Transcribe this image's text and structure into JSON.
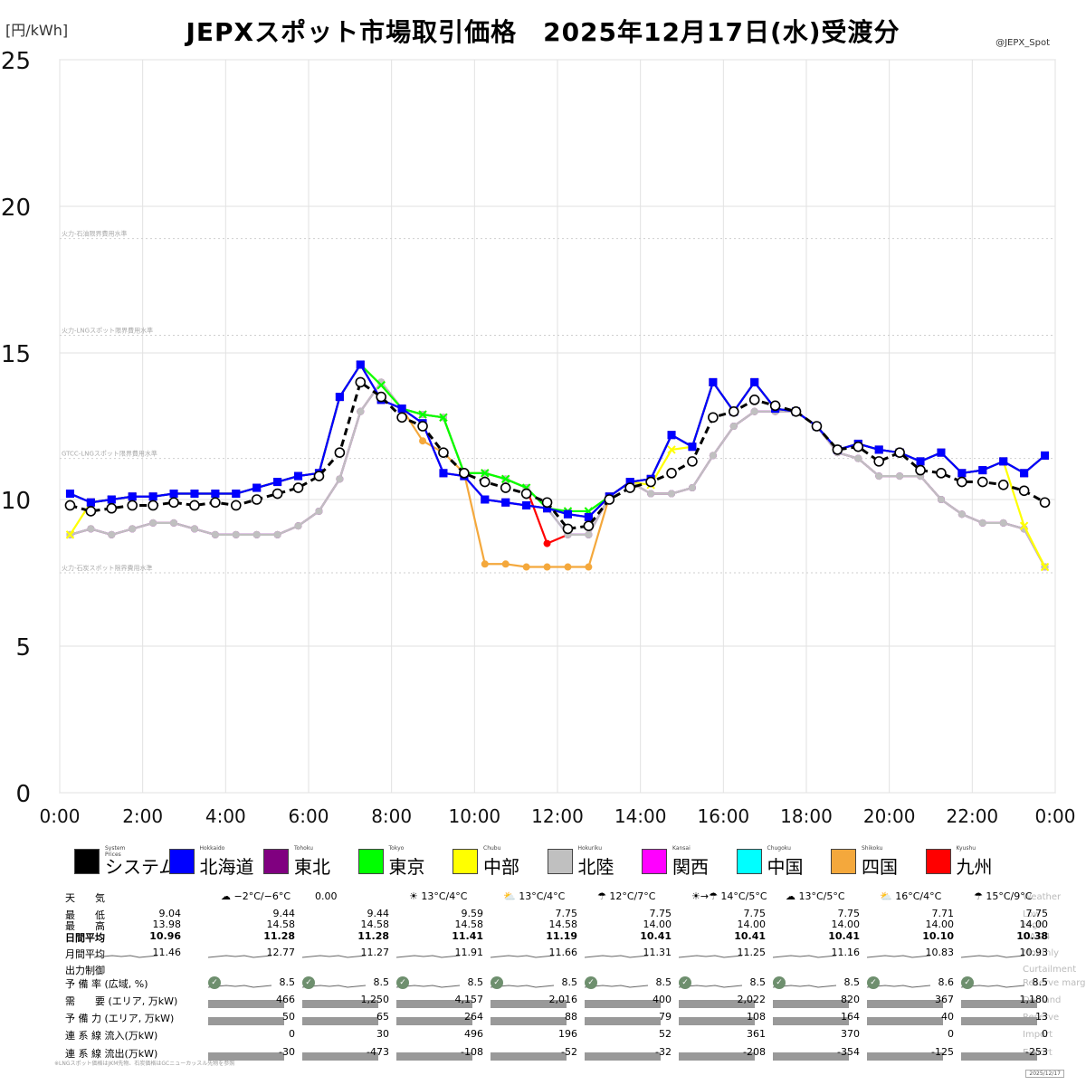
{
  "header": {
    "title": "JEPXスポット市場取引価格　2025年12月17日(水)受渡分",
    "y_unit": "[円/kWh]",
    "credit": "@JEPX_Spot"
  },
  "chart_data": {
    "type": "line",
    "title": "JEPXスポット市場取引価格　2025年12月17日(水)受渡分",
    "ylabel": "[円/kWh]",
    "ylim": [
      0,
      25
    ],
    "xlim": [
      0,
      24
    ],
    "y_ticks": [
      "0",
      "5",
      "10",
      "15",
      "20",
      "25"
    ],
    "x_ticks": [
      "0:00",
      "2:00",
      "4:00",
      "6:00",
      "8:00",
      "10:00",
      "12:00",
      "14:00",
      "16:00",
      "18:00",
      "20:00",
      "22:00",
      "0:00"
    ],
    "grid": true,
    "reference_lines": [
      {
        "label": "火力-石油限界費用水準",
        "value": 18.9
      },
      {
        "label": "火力-LNGスポット限界費用水準",
        "value": 15.6
      },
      {
        "label": "GTCC-LNGスポット限界費用水準",
        "value": 11.4
      },
      {
        "label": "火力-石炭スポット限界費用水準",
        "value": 7.5
      }
    ],
    "x_hours": [
      0.25,
      0.75,
      1.25,
      1.75,
      2.25,
      2.75,
      3.25,
      3.75,
      4.25,
      4.75,
      5.25,
      5.75,
      6.25,
      6.75,
      7.25,
      7.75,
      8.25,
      8.75,
      9.25,
      9.75,
      10.25,
      10.75,
      11.25,
      11.75,
      12.25,
      12.75,
      13.25,
      13.75,
      14.25,
      14.75,
      15.25,
      15.75,
      16.25,
      16.75,
      17.25,
      17.75,
      18.25,
      18.75,
      19.25,
      19.75,
      20.25,
      20.75,
      21.25,
      21.75,
      22.25,
      22.75,
      23.25,
      23.75
    ],
    "series": [
      {
        "name": "システム",
        "en": "System Prices",
        "color": "#000000",
        "dashed": true,
        "values": [
          9.8,
          9.6,
          9.7,
          9.8,
          9.8,
          9.9,
          9.8,
          9.9,
          9.8,
          10.0,
          10.2,
          10.4,
          10.8,
          11.6,
          14.0,
          13.5,
          12.8,
          12.5,
          11.6,
          10.9,
          10.6,
          10.4,
          10.2,
          9.9,
          9.0,
          9.1,
          10.0,
          10.4,
          10.6,
          10.9,
          11.3,
          12.8,
          13.0,
          13.4,
          13.2,
          13.0,
          12.5,
          11.7,
          11.8,
          11.3,
          11.6,
          11.0,
          10.9,
          10.6,
          10.6,
          10.5,
          10.3,
          9.9
        ]
      },
      {
        "name": "北海道",
        "en": "Hokkaido",
        "color": "#0000ff",
        "values": [
          10.2,
          9.9,
          10.0,
          10.1,
          10.1,
          10.2,
          10.2,
          10.2,
          10.2,
          10.4,
          10.6,
          10.8,
          10.9,
          13.5,
          14.6,
          13.4,
          13.1,
          12.6,
          10.9,
          10.8,
          10.0,
          9.9,
          9.8,
          9.7,
          9.5,
          9.4,
          10.1,
          10.6,
          10.7,
          12.2,
          11.8,
          14.0,
          13.0,
          14.0,
          13.1,
          13.0,
          12.5,
          11.7,
          11.9,
          11.7,
          11.6,
          11.3,
          11.6,
          10.9,
          11.0,
          11.3,
          10.9,
          11.5
        ]
      },
      {
        "name": "東北",
        "en": "Tohoku",
        "color": "#800080",
        "values": [
          10.2,
          9.9,
          10.0,
          10.1,
          10.1,
          10.2,
          10.2,
          10.2,
          10.2,
          10.4,
          10.6,
          10.8,
          10.9,
          13.5,
          14.6,
          13.4,
          13.1,
          12.6,
          10.9,
          10.8,
          10.0,
          9.9,
          9.8,
          9.7,
          9.5,
          9.4,
          10.1,
          10.6,
          10.7,
          12.2,
          11.8,
          14.0,
          13.0,
          14.0,
          13.1,
          13.0,
          12.5,
          11.7,
          11.9,
          11.7,
          11.6,
          11.3,
          11.6,
          10.9,
          11.0,
          11.3,
          10.9,
          11.5
        ]
      },
      {
        "name": "東京",
        "en": "Tokyo",
        "color": "#00ff00",
        "values": [
          10.2,
          9.9,
          10.0,
          10.1,
          10.1,
          10.2,
          10.2,
          10.2,
          10.2,
          10.4,
          10.6,
          10.8,
          10.9,
          13.5,
          14.6,
          13.9,
          13.1,
          12.9,
          12.8,
          10.9,
          10.9,
          10.7,
          10.4,
          9.7,
          9.6,
          9.6,
          10.1,
          10.6,
          10.7,
          12.2,
          11.8,
          14.0,
          13.0,
          14.0,
          13.1,
          13.0,
          12.5,
          11.7,
          11.9,
          11.7,
          11.6,
          11.3,
          11.6,
          10.9,
          11.0,
          11.3,
          10.9,
          11.5
        ]
      },
      {
        "name": "中部",
        "en": "Chubu",
        "color": "#ffff00",
        "values": [
          8.8,
          9.9,
          10.0,
          10.1,
          10.1,
          10.2,
          10.2,
          10.2,
          10.2,
          10.4,
          10.6,
          10.8,
          10.9,
          13.5,
          14.6,
          13.9,
          13.1,
          12.9,
          12.8,
          10.9,
          10.9,
          10.7,
          10.4,
          9.7,
          9.6,
          9.6,
          10.1,
          10.6,
          10.5,
          11.7,
          11.8,
          14.0,
          13.0,
          14.0,
          13.1,
          13.0,
          12.5,
          11.7,
          11.9,
          11.7,
          11.6,
          11.3,
          11.6,
          10.9,
          11.0,
          11.3,
          9.1,
          7.7
        ]
      },
      {
        "name": "北陸",
        "en": "Hokuriku",
        "color": "#c0c0c0",
        "values": [
          8.8,
          9.0,
          8.8,
          9.0,
          9.2,
          9.2,
          9.0,
          8.8,
          8.8,
          8.8,
          8.8,
          9.1,
          9.6,
          10.7,
          13.0,
          14.0,
          13.1,
          12.9,
          12.8,
          10.9,
          10.9,
          10.7,
          10.4,
          9.7,
          8.8,
          8.8,
          10.1,
          10.6,
          10.2,
          10.2,
          10.4,
          11.5,
          12.5,
          13.0,
          13.0,
          13.0,
          12.5,
          11.6,
          11.4,
          10.8,
          10.8,
          10.8,
          10.0,
          9.5,
          9.2,
          9.2,
          9.0,
          7.7
        ]
      },
      {
        "name": "関西",
        "en": "Kansai",
        "color": "#ff00ff",
        "values": [
          8.8,
          9.0,
          8.8,
          9.0,
          9.2,
          9.2,
          9.0,
          8.8,
          8.8,
          8.8,
          8.8,
          9.1,
          9.6,
          10.7,
          13.0,
          14.0,
          13.1,
          12.9,
          12.8,
          10.9,
          10.9,
          10.7,
          10.4,
          9.7,
          8.8,
          8.8,
          10.1,
          10.6,
          10.2,
          10.2,
          10.4,
          11.5,
          12.5,
          13.0,
          13.0,
          13.0,
          12.5,
          11.6,
          11.4,
          10.8,
          10.8,
          10.8,
          10.0,
          9.5,
          9.2,
          9.2,
          9.0,
          7.7
        ]
      },
      {
        "name": "中国",
        "en": "Chugoku",
        "color": "#00ffff",
        "values": [
          8.8,
          9.0,
          8.8,
          9.0,
          9.2,
          9.2,
          9.0,
          8.8,
          8.8,
          8.8,
          8.8,
          9.1,
          9.6,
          10.7,
          13.0,
          14.0,
          13.1,
          12.9,
          12.8,
          10.9,
          10.9,
          10.7,
          10.4,
          9.7,
          8.8,
          8.8,
          10.1,
          10.6,
          10.2,
          10.2,
          10.4,
          11.5,
          12.5,
          13.0,
          13.0,
          13.0,
          12.5,
          11.6,
          11.4,
          10.8,
          10.8,
          10.8,
          10.0,
          9.5,
          9.2,
          9.2,
          9.0,
          7.7
        ]
      },
      {
        "name": "四国",
        "en": "Shikoku",
        "color": "#f4a83c",
        "values": [
          8.8,
          9.0,
          8.8,
          9.0,
          9.2,
          9.2,
          9.0,
          8.8,
          8.8,
          8.8,
          8.8,
          9.1,
          9.6,
          10.7,
          13.0,
          14.0,
          13.1,
          12.0,
          11.6,
          10.9,
          7.8,
          7.8,
          7.7,
          7.7,
          7.7,
          7.7,
          10.1,
          10.6,
          10.2,
          10.2,
          10.4,
          11.5,
          12.5,
          13.0,
          13.0,
          13.0,
          12.5,
          11.6,
          11.4,
          10.8,
          10.8,
          10.8,
          10.0,
          9.5,
          9.2,
          9.2,
          9.0,
          7.7
        ]
      },
      {
        "name": "九州",
        "en": "Kyushu",
        "color": "#ff0000",
        "values": [
          8.8,
          9.0,
          8.8,
          9.0,
          9.2,
          9.2,
          9.0,
          8.8,
          8.8,
          8.8,
          8.8,
          9.1,
          9.6,
          10.7,
          13.0,
          14.0,
          13.1,
          12.9,
          12.8,
          10.9,
          10.9,
          10.7,
          10.4,
          8.5,
          8.8,
          8.8,
          10.1,
          10.6,
          10.2,
          10.2,
          10.4,
          11.5,
          12.5,
          13.0,
          13.0,
          13.0,
          12.5,
          11.6,
          11.4,
          10.8,
          10.8,
          10.8,
          10.0,
          9.5,
          9.2,
          9.2,
          9.0,
          7.7
        ]
      }
    ]
  },
  "table": {
    "row_labels": [
      {
        "jp": "天　　気",
        "en": "Weather"
      },
      {
        "jp": "最　　低",
        "en": "Low"
      },
      {
        "jp": "最　　高",
        "en": "High"
      },
      {
        "jp": "日間平均",
        "en": "DA-24"
      },
      {
        "jp": "月間平均",
        "en": "Monthly"
      },
      {
        "jp": "出力制御",
        "en": "Curtailment"
      },
      {
        "jp": "予 備 率 (広域, %)",
        "en": "Reserve margin"
      },
      {
        "jp": "需　　要 (エリア, 万kW)",
        "en": "Demand"
      },
      {
        "jp": "予 備 力 (エリア, 万kW)",
        "en": "Reserve"
      },
      {
        "jp": "連 系 線 流入(万kW)",
        "en": "Import"
      },
      {
        "jp": "連 系 線 流出(万kW)",
        "en": "Export"
      }
    ],
    "columns": [
      {
        "weather": "",
        "low": "9.04",
        "high": "13.98",
        "avg": "10.96",
        "monthly": "11.46",
        "reserve_rate": "",
        "demand": "",
        "reserve": "",
        "import": "",
        "export": ""
      },
      {
        "weather": "−2°C/−6°C",
        "weather_icon": "cloud-icon",
        "low": "9.44",
        "high": "14.58",
        "avg": "11.28",
        "monthly": "12.77",
        "reserve_rate": "8.5",
        "demand": "466",
        "reserve": "50",
        "import": "0",
        "export": "-30"
      },
      {
        "weather": "0.00",
        "low": "9.44",
        "high": "14.58",
        "avg": "11.28",
        "monthly": "11.27",
        "reserve_rate": "8.5",
        "demand": "1,250",
        "reserve": "65",
        "import": "30",
        "export": "-473"
      },
      {
        "weather": "13°C/4°C",
        "weather_icon": "sun-icon",
        "low": "9.59",
        "high": "14.58",
        "avg": "11.41",
        "monthly": "11.91",
        "reserve_rate": "8.5",
        "demand": "4,157",
        "reserve": "264",
        "import": "496",
        "export": "-108"
      },
      {
        "weather": "13°C/4°C",
        "weather_icon": "partly-cloudy-icon",
        "low": "7.75",
        "high": "14.58",
        "avg": "11.19",
        "monthly": "11.66",
        "reserve_rate": "8.5",
        "demand": "2,016",
        "reserve": "88",
        "import": "196",
        "export": "-52"
      },
      {
        "weather": "12°C/7°C",
        "weather_icon": "umbrella-icon",
        "low": "7.75",
        "high": "14.00",
        "avg": "10.41",
        "monthly": "11.31",
        "reserve_rate": "8.5",
        "demand": "400",
        "reserve": "79",
        "import": "52",
        "export": "-32"
      },
      {
        "weather": "14°C/5°C",
        "weather_icon": "sun-to-rain-icon",
        "low": "7.75",
        "high": "14.00",
        "avg": "10.41",
        "monthly": "11.25",
        "reserve_rate": "8.5",
        "demand": "2,022",
        "reserve": "108",
        "import": "361",
        "export": "-208"
      },
      {
        "weather": "13°C/5°C",
        "weather_icon": "cloud-icon",
        "low": "7.75",
        "high": "14.00",
        "avg": "10.41",
        "monthly": "11.16",
        "reserve_rate": "8.5",
        "demand": "820",
        "reserve": "164",
        "import": "370",
        "export": "-354"
      },
      {
        "weather": "16°C/4°C",
        "weather_icon": "partly-cloudy-icon",
        "low": "7.71",
        "high": "14.00",
        "avg": "10.10",
        "monthly": "10.83",
        "reserve_rate": "8.6",
        "demand": "367",
        "reserve": "40",
        "import": "0",
        "export": "-125"
      },
      {
        "weather": "15°C/9°C",
        "weather_icon": "umbrella-icon",
        "low": "7.75",
        "high": "14.00",
        "avg": "10.38",
        "monthly": "10.93",
        "reserve_rate": "8.5",
        "demand": "1,180",
        "reserve": "13",
        "import": "0",
        "export": "-253"
      }
    ]
  },
  "footnote": "※LNGスポット価格はJKM先物、石炭価格はGCニューカッスル先物を参照",
  "date_stamp": "2025/12/17"
}
